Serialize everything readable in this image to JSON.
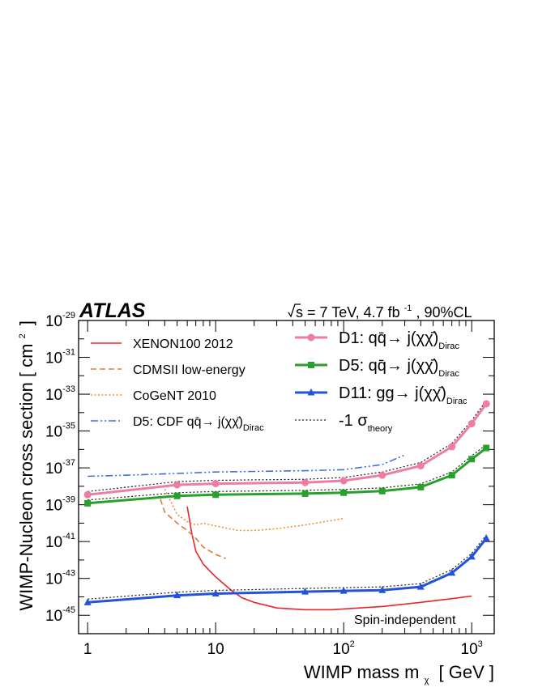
{
  "chart_data": {
    "type": "line",
    "header": {
      "experiment": "ATLAS",
      "sqrt_s": "s",
      "energy": "= 7 TeV, 4.7 fb",
      "lumi_exp": "-1",
      "cl": ", 90%CL"
    },
    "xlabel": {
      "main": "WIMP mass m",
      "sub": "χ",
      "unit": "[ GeV ]"
    },
    "ylabel": {
      "main": "WIMP-Nucleon cross section [ cm",
      "exp": "2",
      "close": "]"
    },
    "xscale": "log",
    "yscale": "log",
    "xlim": [
      0.85,
      1500
    ],
    "ylim": [
      1e-46,
      1e-29
    ],
    "x_ticks": [
      {
        "value": 1,
        "label": "1",
        "exp": ""
      },
      {
        "value": 10,
        "label": "10",
        "exp": ""
      },
      {
        "value": 100,
        "label": "10",
        "exp": "2"
      },
      {
        "value": 1000,
        "label": "10",
        "exp": "3"
      }
    ],
    "y_ticks": [
      {
        "value": 1e-29,
        "base": "10",
        "exp": "-29"
      },
      {
        "value": 1e-31,
        "base": "10",
        "exp": "-31"
      },
      {
        "value": 1e-33,
        "base": "10",
        "exp": "-33"
      },
      {
        "value": 1e-35,
        "base": "10",
        "exp": "-35"
      },
      {
        "value": 1e-37,
        "base": "10",
        "exp": "-37"
      },
      {
        "value": 1e-39,
        "base": "10",
        "exp": "-39"
      },
      {
        "value": 1e-41,
        "base": "10",
        "exp": "-41"
      },
      {
        "value": 1e-43,
        "base": "10",
        "exp": "-43"
      },
      {
        "value": 1e-45,
        "base": "10",
        "exp": "-45"
      }
    ],
    "annotation": "Spin-independent",
    "legend_placement": "top",
    "series": [
      {
        "name": "XENON100 2012",
        "color": "#e8262b",
        "style": "solid",
        "marker": "none",
        "x": [
          6,
          6.5,
          7,
          8,
          10,
          13,
          16,
          20,
          30,
          50,
          80,
          100,
          200,
          400,
          700,
          1000
        ],
        "y": [
          8e-40,
          3e-41,
          3e-42,
          6e-43,
          1.2e-43,
          2.5e-44,
          9e-45,
          5e-45,
          2.5e-45,
          2e-45,
          2e-45,
          2.2e-45,
          3e-45,
          5e-45,
          8e-45,
          1.1e-44
        ]
      },
      {
        "name": "CDMSII low-energy",
        "color": "#e07b39",
        "style": "dashed",
        "marker": "none",
        "x": [
          3.7,
          4,
          5,
          6,
          7,
          8,
          10,
          12
        ],
        "y": [
          2e-39,
          4e-40,
          1e-40,
          4e-41,
          1.5e-41,
          5e-42,
          2e-42,
          1.2e-42
        ]
      },
      {
        "name": "CoGeNT 2010",
        "color": "#ef8f33",
        "style": "dotted",
        "marker": "none",
        "x": [
          4,
          5,
          6,
          7,
          8,
          10,
          15,
          20,
          30,
          50,
          100
        ],
        "y": [
          7e-39,
          3e-40,
          1.2e-40,
          8e-41,
          1e-40,
          7e-41,
          4e-41,
          4e-41,
          5e-41,
          8e-41,
          1.8e-40
        ]
      },
      {
        "name": "D5: CDF qq̄→ j(χχ̄)Dirac",
        "color": "#3a72d6",
        "style": "dashdotdot",
        "marker": "none",
        "x": [
          1,
          2,
          5,
          10,
          50,
          100,
          200,
          300
        ],
        "y": [
          3.5e-38,
          4e-38,
          5e-38,
          6e-38,
          7e-38,
          8e-38,
          1.5e-37,
          5e-37
        ]
      },
      {
        "name": "D1: qq̄→ j(χχ̄)Dirac",
        "color": "#ef7ca2",
        "style": "solid",
        "marker": "circle",
        "x": [
          1,
          5,
          10,
          50,
          100,
          200,
          400,
          700,
          1000,
          1300
        ],
        "y": [
          3.5e-39,
          1.2e-38,
          1.4e-38,
          1.6e-38,
          2e-38,
          4e-38,
          1.3e-37,
          1.4e-36,
          2.5e-35,
          3e-34
        ]
      },
      {
        "name": "D5: qq̄→ j(χχ̄)Dirac",
        "color": "#27a12c",
        "style": "solid",
        "marker": "square",
        "x": [
          1,
          5,
          10,
          50,
          100,
          200,
          400,
          700,
          1000,
          1300
        ],
        "y": [
          1.2e-39,
          3e-39,
          3.5e-39,
          4e-39,
          4.5e-39,
          5.5e-39,
          9e-39,
          4e-38,
          3e-37,
          1.2e-36
        ]
      },
      {
        "name": "D11: gg→ j(χχ̄)Dirac",
        "color": "#2452d8",
        "style": "solid",
        "marker": "triangle",
        "x": [
          1,
          5,
          10,
          50,
          100,
          200,
          400,
          700,
          1000,
          1300
        ],
        "y": [
          5e-45,
          1.2e-44,
          1.5e-44,
          1.9e-44,
          2.1e-44,
          2.3e-44,
          3.5e-44,
          2e-43,
          1.5e-42,
          1.5e-41
        ]
      },
      {
        "name": "-1 σtheory",
        "color": "#1a1a1a",
        "style": "dotted",
        "marker": "none"
      }
    ],
    "legend_left": [
      {
        "label": "XENON100 2012",
        "series": 0
      },
      {
        "label": "CDMSII low-energy",
        "series": 1
      },
      {
        "label": "CoGeNT 2010",
        "series": 2
      },
      {
        "label": "D5: CDF qq̄→ j(χχ̄)",
        "sub": "Dirac",
        "series": 3
      }
    ],
    "legend_right": [
      {
        "label": "D1: qq̄→ j(χχ̄)",
        "sub": "Dirac",
        "series": 4
      },
      {
        "label": "D5: qq̄→ j(χχ̄)",
        "sub": "Dirac",
        "series": 5
      },
      {
        "label": "D11: gg→ j(χχ̄)",
        "sub": "Dirac",
        "series": 6
      },
      {
        "label": "-1 σ",
        "sub": "theory",
        "series": 7
      }
    ]
  }
}
